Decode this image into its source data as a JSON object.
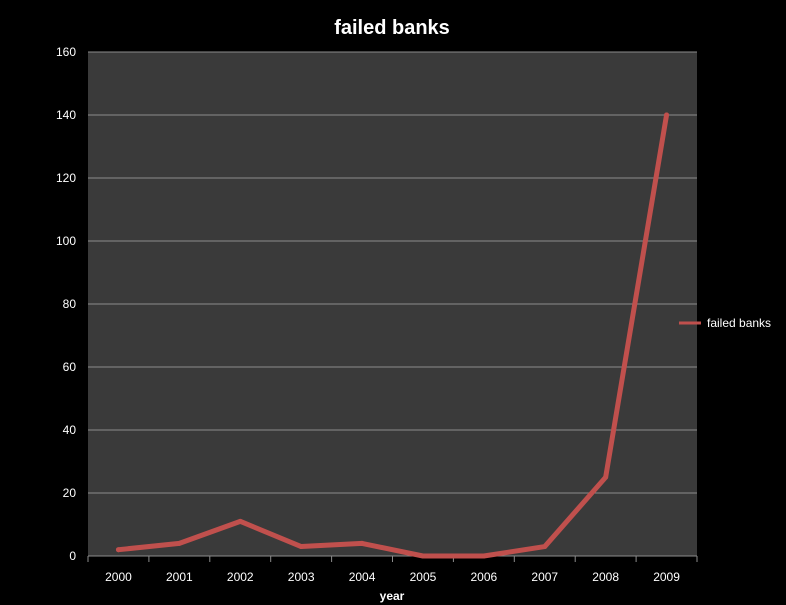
{
  "chart_data": {
    "type": "line",
    "title": "failed banks",
    "xlabel": "year",
    "ylabel": "",
    "categories": [
      "2000",
      "2001",
      "2002",
      "2003",
      "2004",
      "2005",
      "2006",
      "2007",
      "2008",
      "2009"
    ],
    "series": [
      {
        "name": "failed banks",
        "values": [
          2,
          4,
          11,
          3,
          4,
          0,
          0,
          3,
          25,
          140
        ],
        "color": "#c0504d"
      }
    ],
    "ylim": [
      0,
      160
    ],
    "yticks": [
      "0",
      "20",
      "40",
      "60",
      "80",
      "100",
      "120",
      "140",
      "160"
    ],
    "grid": true,
    "legend_position": "right",
    "colors": {
      "background": "#000000",
      "plot_area": "#3a3a3a",
      "gridline": "#8c8c8c",
      "text": "#ffffff"
    }
  }
}
